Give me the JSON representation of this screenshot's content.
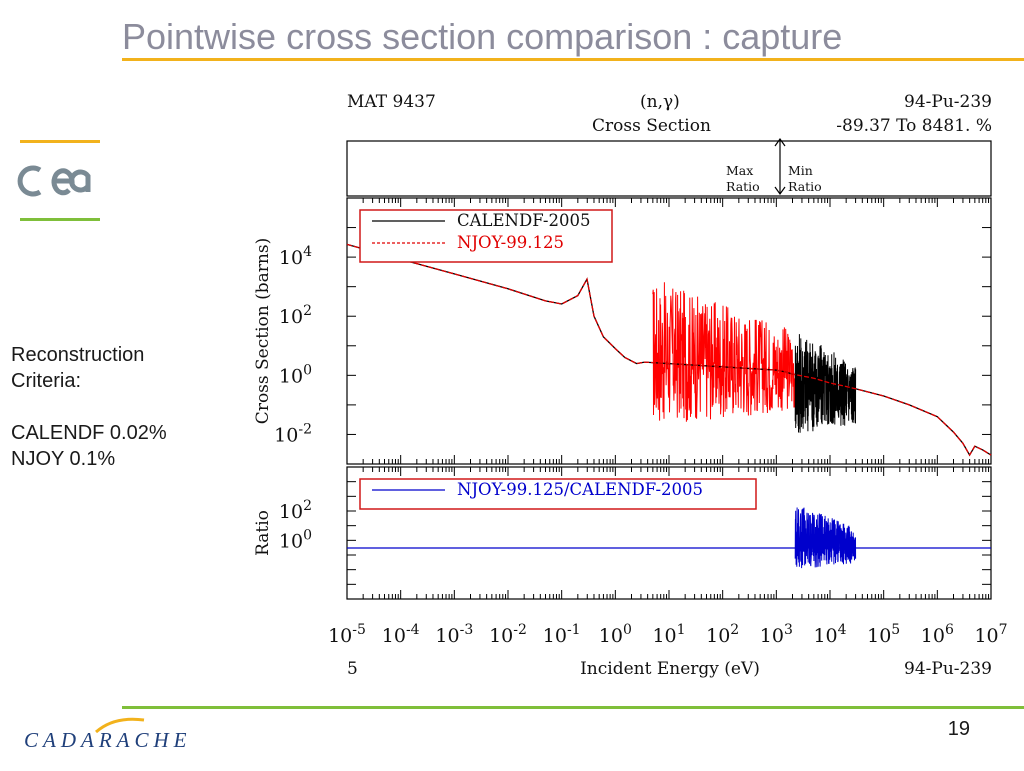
{
  "slide": {
    "title": "Pointwise cross section comparison : capture",
    "side_text": [
      "Reconstruction",
      "Criteria:",
      "",
      "CALENDF 0.02%",
      "NJOY 0.1%"
    ],
    "page_number": "19",
    "logo_top": "cea",
    "logo_bottom": "CADARACHE",
    "colors": {
      "title": "#8c8c9c",
      "top_rule": "#f2b21c",
      "bottom_rule": "#7fbf3a",
      "cea_logo": "#7a8a94",
      "cadarache_logo": "#1f3f7a"
    }
  },
  "chart_data": {
    "type": "line",
    "header": {
      "mat": "MAT 9437",
      "reaction": "(n,γ)",
      "nuclide": "94-Pu-239",
      "quantity": "Cross Section",
      "range": "-89.37 To 8481. %"
    },
    "ratio_key": {
      "max_label_1": "Max",
      "max_label_2": "Ratio",
      "min_label_1": "Min",
      "min_label_2": "Ratio"
    },
    "footer": {
      "left": "5",
      "xlabel": "Incident Energy (eV)",
      "right": "94-Pu-239"
    },
    "x_scale": "log",
    "xlim": [
      1e-05,
      10000000.0
    ],
    "x_ticks": [
      "10-5",
      "10-4",
      "10-3",
      "10-2",
      "10-1",
      "100",
      "101",
      "102",
      "103",
      "104",
      "105",
      "106",
      "107"
    ],
    "x_tick_labels": [
      {
        "base": "10",
        "exp": "-5"
      },
      {
        "base": "10",
        "exp": "-4"
      },
      {
        "base": "10",
        "exp": "-3"
      },
      {
        "base": "10",
        "exp": "-2"
      },
      {
        "base": "10",
        "exp": "-1"
      },
      {
        "base": "10",
        "exp": "0"
      },
      {
        "base": "10",
        "exp": "1"
      },
      {
        "base": "10",
        "exp": "2"
      },
      {
        "base": "10",
        "exp": "3"
      },
      {
        "base": "10",
        "exp": "4"
      },
      {
        "base": "10",
        "exp": "5"
      },
      {
        "base": "10",
        "exp": "6"
      },
      {
        "base": "10",
        "exp": "7"
      }
    ],
    "panels": [
      {
        "name": "cross-section",
        "ylabel": "Cross Section (barns)",
        "y_scale": "log",
        "ylim": [
          0.001,
          1000000
        ],
        "y_tick_labels": [
          {
            "base": "10",
            "exp": "4"
          },
          {
            "base": "10",
            "exp": "2"
          },
          {
            "base": "10",
            "exp": "0"
          },
          {
            "base": "10",
            "exp": "-2"
          }
        ],
        "y_tick_values": [
          10000,
          100,
          1,
          0.01
        ],
        "legend": [
          "CALENDF-2005",
          "NJOY-99.125"
        ],
        "series": [
          {
            "name": "CALENDF-2005",
            "color": "#000000",
            "style": "solid",
            "x": [
              1e-05,
              0.0001,
              0.001,
              0.01,
              0.05,
              0.1,
              0.2,
              0.296,
              0.4,
              0.6,
              1,
              1.5,
              2.5,
              3.5,
              1000,
              1500,
              2000,
              5000,
              10000,
              20000,
              30000,
              100000,
              300000,
              1000000,
              2000000,
              3000000,
              4000000,
              5000000,
              7000000,
              10000000
            ],
            "y": [
              27000,
              8500,
              2700,
              850,
              330,
              260,
              500,
              1800,
              100,
              20,
              8,
              4,
              2.5,
              2.8,
              1.5,
              1.3,
              1.1,
              0.8,
              0.55,
              0.42,
              0.35,
              0.2,
              0.1,
              0.04,
              0.012,
              0.005,
              0.002,
              0.004,
              0.003,
              0.002
            ]
          },
          {
            "name": "NJOY-99.125",
            "color": "#e00000",
            "style": "dashed",
            "x": [
              1e-05,
              0.0001,
              0.001,
              0.01,
              0.05,
              0.1,
              0.2,
              0.296,
              0.4,
              0.6,
              1,
              1.5,
              2.5,
              3.5,
              1000,
              1500,
              2000,
              5000,
              10000,
              20000,
              30000,
              100000,
              300000,
              1000000,
              2000000,
              3000000,
              4000000,
              5000000,
              7000000,
              10000000
            ],
            "y": [
              27000,
              8500,
              2700,
              850,
              330,
              260,
              500,
              1800,
              100,
              20,
              8,
              4,
              2.5,
              2.8,
              1.5,
              1.3,
              1.1,
              0.8,
              0.55,
              0.42,
              0.35,
              0.2,
              0.1,
              0.04,
              0.012,
              0.005,
              0.002,
              0.004,
              0.003,
              0.002
            ]
          }
        ],
        "resonance_bands": [
          {
            "series": "NJOY-99.125",
            "color": "#ff0000",
            "x_range": [
              5,
              2250
            ],
            "y_range": [
              0.02,
              2000
            ]
          },
          {
            "series": "CALENDF-2005",
            "color": "#000000",
            "x_range": [
              2250,
              30000
            ],
            "y_range": [
              0.01,
              40
            ]
          }
        ]
      },
      {
        "name": "ratio",
        "ylabel": "Ratio",
        "y_scale": "log",
        "ylim": [
          0.0001,
          100000
        ],
        "y_tick_labels": [
          {
            "base": "10",
            "exp": "2"
          },
          {
            "base": "10",
            "exp": "0"
          }
        ],
        "y_tick_values": [
          100,
          1
        ],
        "legend": [
          "NJOY-99.125/CALENDF-2005"
        ],
        "series": [
          {
            "name": "NJOY-99.125/CALENDF-2005",
            "color": "#0000cc",
            "style": "solid",
            "x": [
              1e-05,
              10000000.0
            ],
            "y": [
              0.3,
              0.3
            ]
          }
        ],
        "resonance_bands": [
          {
            "series": "NJOY-99.125/CALENDF-2005",
            "color": "#0000cc",
            "x_range": [
              2250,
              30000
            ],
            "y_range": [
              0.01,
              300
            ]
          }
        ]
      }
    ]
  }
}
